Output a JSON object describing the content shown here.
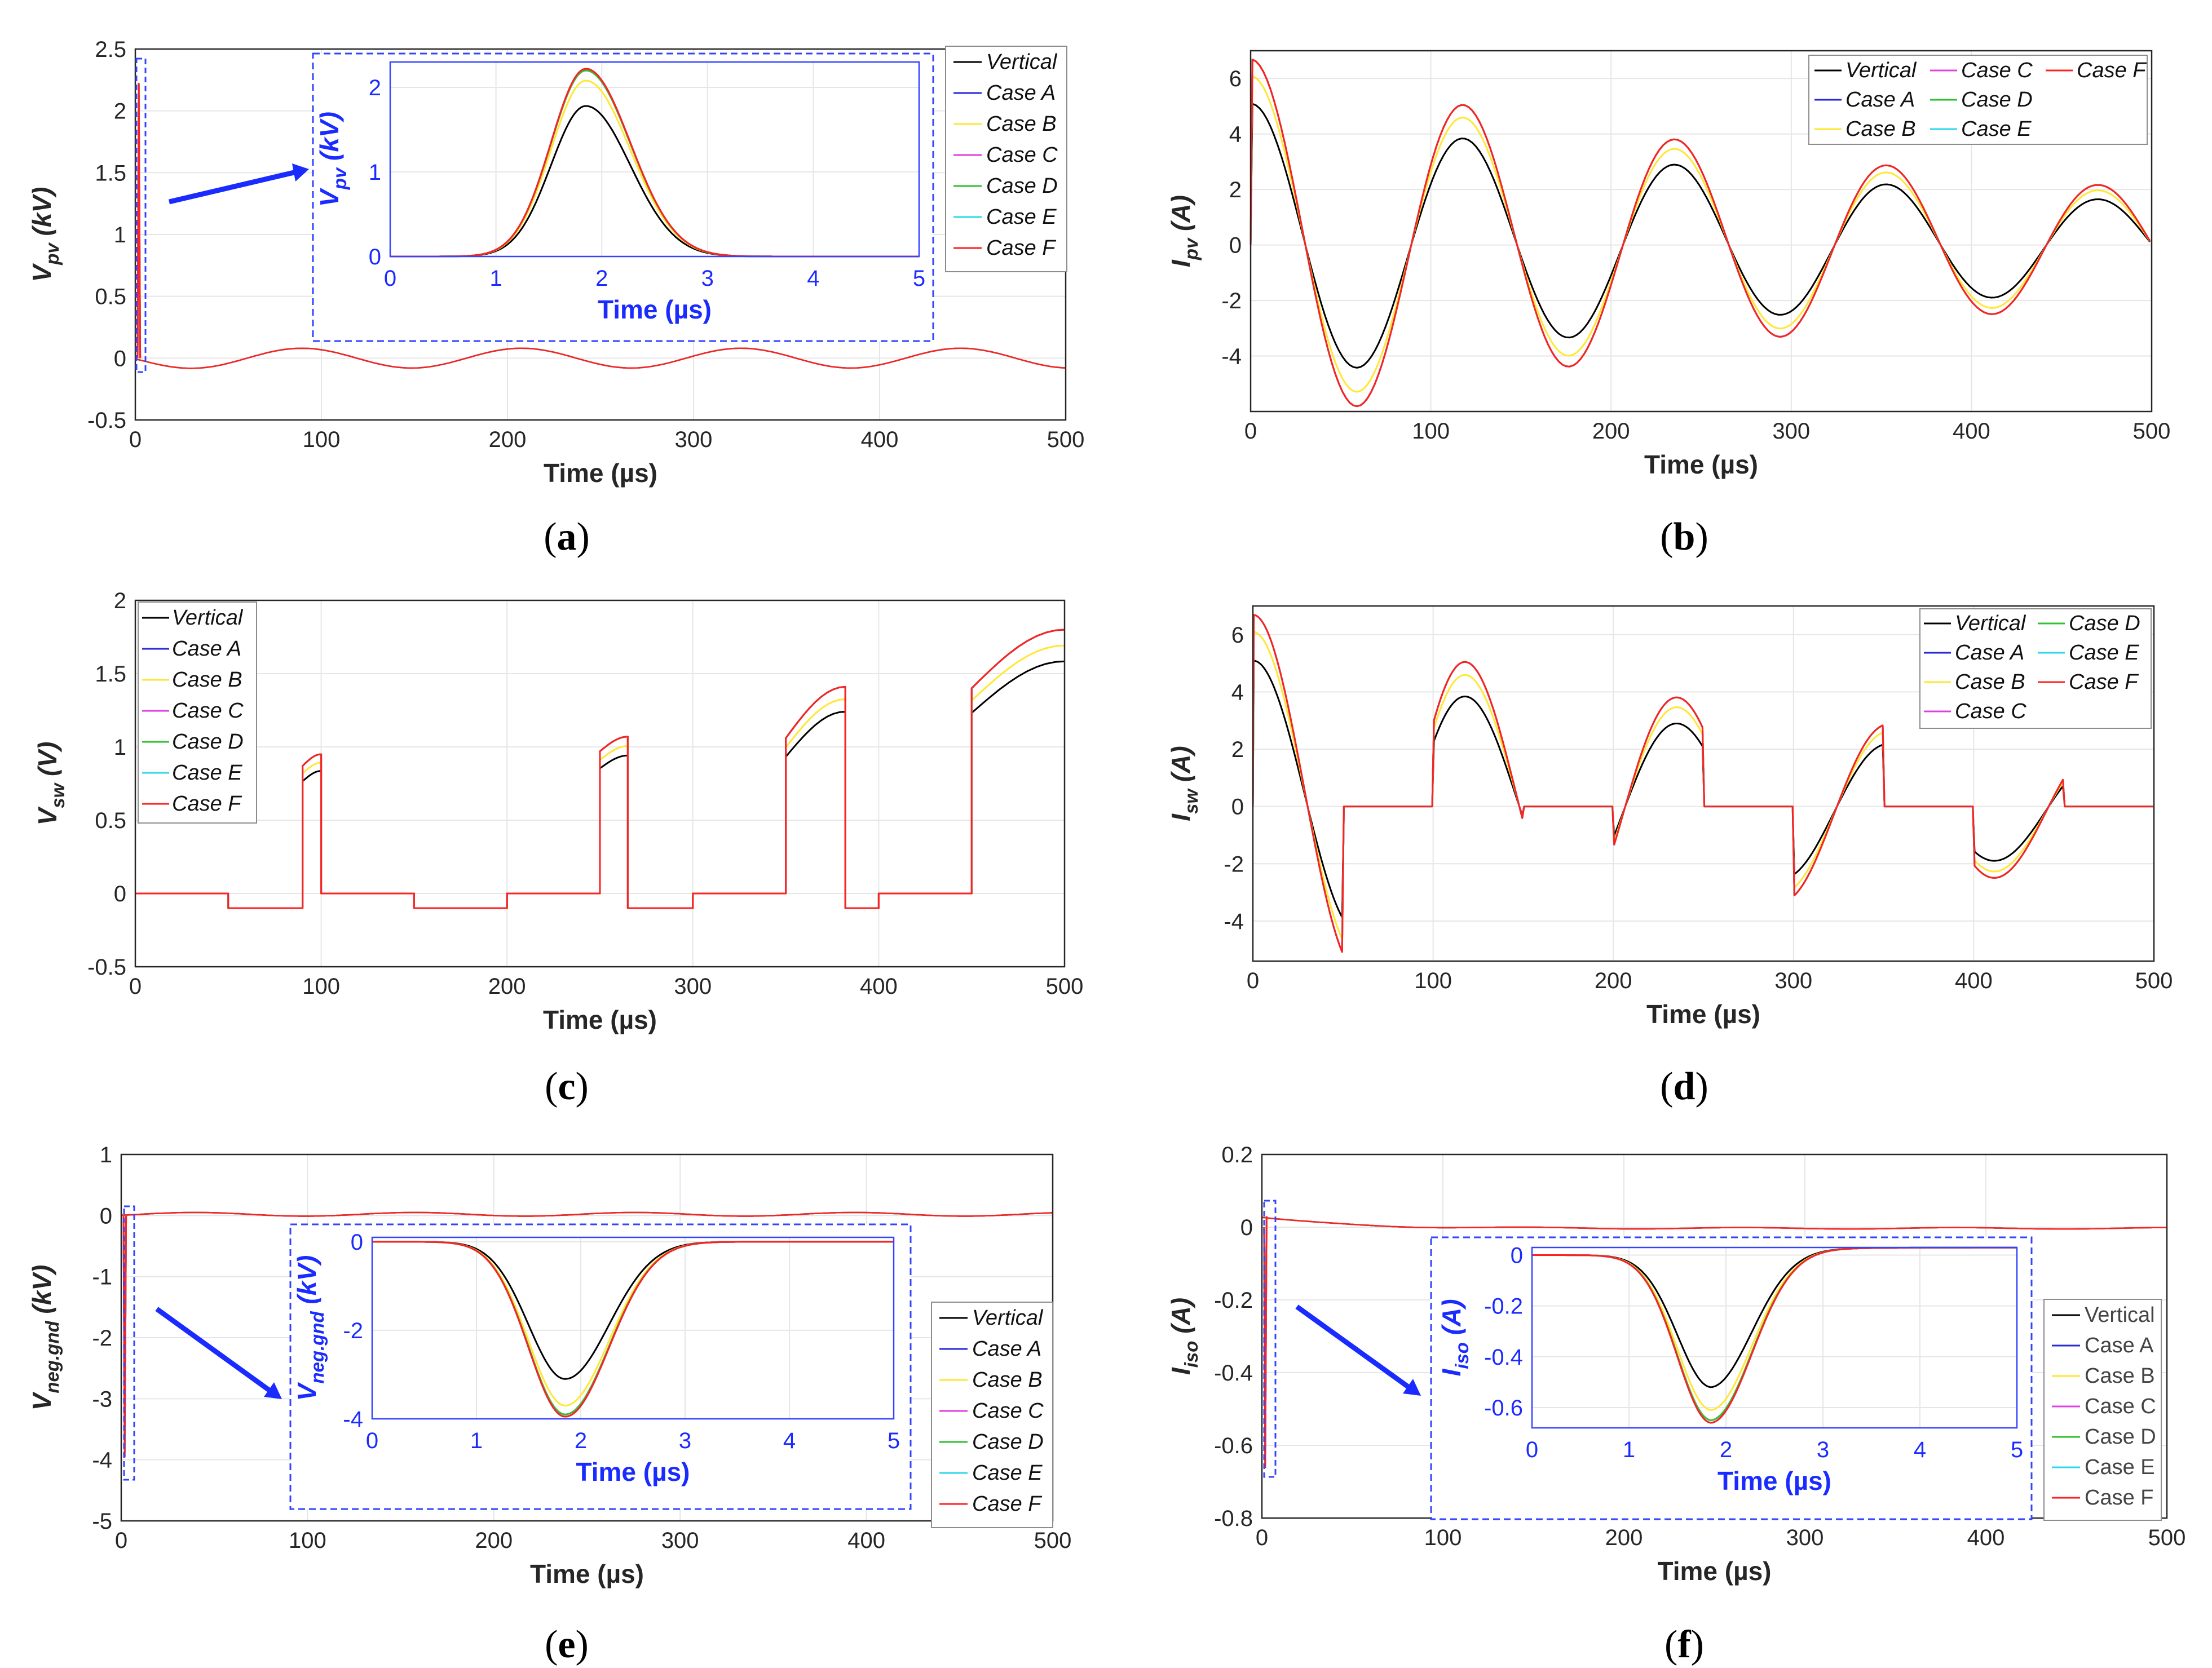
{
  "series_names": [
    "Vertical",
    "Case A",
    "Case B",
    "Case C",
    "Case D",
    "Case E",
    "Case F"
  ],
  "series_colors": [
    "#000000",
    "#2a2ad8",
    "#ffe733",
    "#e040e0",
    "#30c030",
    "#30d8e8",
    "#ff2020"
  ],
  "captions": [
    {
      "open": "(",
      "letter": "a",
      "close": ")"
    },
    {
      "open": "(",
      "letter": "b",
      "close": ")"
    },
    {
      "open": "(",
      "letter": "c",
      "close": ")"
    },
    {
      "open": "(",
      "letter": "d",
      "close": ")"
    },
    {
      "open": "(",
      "letter": "e",
      "close": ")"
    },
    {
      "open": "(",
      "letter": "f",
      "close": ")"
    }
  ],
  "chart_data": [
    {
      "id": "a",
      "type": "line",
      "title": "",
      "xlabel": "Time (µs)",
      "ylabel_main": "V",
      "ylabel_sub": "pv",
      "ylabel_unit": " (kV)",
      "xlim": [
        0,
        500
      ],
      "ylim": [
        -0.5,
        2.5
      ],
      "xticks": [
        "0",
        "100",
        "200",
        "300",
        "400",
        "500"
      ],
      "yticks": [
        "-0.5",
        "0",
        "0.5",
        "1",
        "1.5",
        "2",
        "2.5"
      ],
      "legend": "top-right, outside",
      "series": [
        {
          "name": "Vertical",
          "scale": 1.0
        },
        {
          "name": "Case A",
          "scale": 1.03
        },
        {
          "name": "Case B",
          "scale": 1.0
        },
        {
          "name": "Case C",
          "scale": 1.03
        },
        {
          "name": "Case D",
          "scale": 1.03
        },
        {
          "name": "Case E",
          "scale": 1.03
        },
        {
          "name": "Case F",
          "scale": 1.03
        }
      ],
      "tail_oscillation": {
        "amplitude": 0.08,
        "period_us": 118
      },
      "inset": {
        "xlabel": "Time (µs)",
        "ylabel_main": "V",
        "ylabel_sub": "pv",
        "ylabel_unit": " (kV)",
        "xlim": [
          0,
          5
        ],
        "ylim": [
          0,
          2.3
        ],
        "xticks": [
          "0",
          "1",
          "2",
          "3",
          "4",
          "5"
        ],
        "yticks": [
          "0",
          "1",
          "2"
        ],
        "pulse_center_us": 1.85,
        "peaks": {
          "Vertical": 1.78,
          "Case A": 2.22,
          "Case B": 2.08,
          "Case C": 2.22,
          "Case D": 2.2,
          "Case E": 2.22,
          "Case F": 2.22
        }
      }
    },
    {
      "id": "b",
      "type": "line",
      "xlabel": "Time (µs)",
      "ylabel_main": "I",
      "ylabel_sub": "pv",
      "ylabel_unit": " (A)",
      "xlim": [
        0,
        500
      ],
      "ylim": [
        -6,
        7
      ],
      "xticks": [
        "0",
        "100",
        "200",
        "300",
        "400",
        "500"
      ],
      "yticks": [
        "-4",
        "-2",
        "0",
        "2",
        "4",
        "6"
      ],
      "legend": "top-right, 3 columns",
      "oscillation": {
        "period_us": 117.5,
        "decay_per_us": 0.0024
      },
      "amplitudes": {
        "Vertical": 5.1,
        "Case A": 6.7,
        "Case B": 6.1,
        "Case C": 6.7,
        "Case D": 6.7,
        "Case E": 6.7,
        "Case F": 6.7
      }
    },
    {
      "id": "c",
      "type": "line",
      "xlabel": "Time (µs)",
      "ylabel_main": "V",
      "ylabel_sub": "sw",
      "ylabel_unit": " (V)",
      "xlim": [
        0,
        500
      ],
      "ylim": [
        -0.5,
        2
      ],
      "xticks": [
        "0",
        "100",
        "200",
        "300",
        "400",
        "500"
      ],
      "yticks": [
        "-0.5",
        "0",
        "0.5",
        "1",
        "1.5",
        "2"
      ],
      "legend": "top-left",
      "ratios": {
        "Vertical": 0.88,
        "Case B": 0.94
      },
      "segments": [
        {
          "x0": 0,
          "x1": 50,
          "y0": 0,
          "y1": 0
        },
        {
          "x0": 50,
          "x1": 90,
          "y0": -0.1,
          "y1": -0.1
        },
        {
          "x0": 90,
          "x1": 100,
          "y0": 0.87,
          "y1": 0.95
        },
        {
          "x0": 100,
          "x1": 150,
          "y0": 0,
          "y1": 0
        },
        {
          "x0": 150,
          "x1": 200,
          "y0": -0.1,
          "y1": -0.1
        },
        {
          "x0": 200,
          "x1": 250,
          "y0": 0,
          "y1": 0
        },
        {
          "x0": 250,
          "x1": 265,
          "y0": 0.97,
          "y1": 1.07
        },
        {
          "x0": 265,
          "x1": 300,
          "y0": -0.1,
          "y1": -0.1
        },
        {
          "x0": 300,
          "x1": 350,
          "y0": 0,
          "y1": 0
        },
        {
          "x0": 350,
          "x1": 382,
          "y0": 1.06,
          "y1": 1.41
        },
        {
          "x0": 382,
          "x1": 400,
          "y0": -0.1,
          "y1": -0.1
        },
        {
          "x0": 400,
          "x1": 450,
          "y0": 0,
          "y1": 0
        },
        {
          "x0": 450,
          "x1": 500,
          "y0": 1.4,
          "y1": 1.8
        }
      ]
    },
    {
      "id": "d",
      "type": "line",
      "xlabel": "Time (µs)",
      "ylabel_main": "I",
      "ylabel_sub": "sw",
      "ylabel_unit": " (A)",
      "xlim": [
        0,
        500
      ],
      "ylim": [
        -5.4,
        7
      ],
      "xticks": [
        "0",
        "100",
        "200",
        "300",
        "400",
        "500"
      ],
      "yticks": [
        "-4",
        "-2",
        "0",
        "2",
        "4",
        "6"
      ],
      "legend": "top-right, 2 columns",
      "on_windows_us": [
        [
          0,
          50
        ],
        [
          100,
          150
        ],
        [
          200,
          250
        ],
        [
          300,
          350
        ],
        [
          400,
          450
        ]
      ],
      "oscillation": {
        "period_us": 117.5,
        "decay_per_us": 0.0024
      },
      "amplitudes": {
        "Vertical": 5.1,
        "Case A": 6.7,
        "Case B": 6.1,
        "Case C": 6.7,
        "Case D": 6.7,
        "Case E": 6.7,
        "Case F": 6.7
      }
    },
    {
      "id": "e",
      "type": "line",
      "xlabel": "Time (µs)",
      "ylabel_main": "V",
      "ylabel_sub": "neg.gnd",
      "ylabel_unit": " (kV)",
      "xlim": [
        0,
        500
      ],
      "ylim": [
        -5,
        1
      ],
      "xticks": [
        "0",
        "100",
        "200",
        "300",
        "400",
        "500"
      ],
      "yticks": [
        "-5",
        "-4",
        "-3",
        "-2",
        "-1",
        "0",
        "1"
      ],
      "legend": "bottom-right",
      "tail_oscillation": {
        "amplitude": 0.03,
        "period_us": 118,
        "offset": 0.02
      },
      "inset": {
        "xlabel": "Time (µs)",
        "ylabel_main": "V",
        "ylabel_sub": "neg.gnd",
        "ylabel_unit": " (kV)",
        "xlim": [
          0,
          5
        ],
        "ylim": [
          -4,
          0.1
        ],
        "xticks": [
          "0",
          "1",
          "2",
          "3",
          "4",
          "5"
        ],
        "yticks": [
          "-4",
          "-2",
          "0"
        ],
        "pulse_center_us": 1.85,
        "peaks": {
          "Vertical": -3.1,
          "Case A": -3.95,
          "Case B": -3.7,
          "Case C": -3.95,
          "Case D": -3.9,
          "Case E": -3.95,
          "Case F": -3.95
        }
      }
    },
    {
      "id": "f",
      "type": "line",
      "xlabel": "Time (µs)",
      "ylabel_main": "I",
      "ylabel_sub": "iso",
      "ylabel_unit": " (A)",
      "xlim": [
        0,
        500
      ],
      "ylim": [
        -0.8,
        0.2
      ],
      "xticks": [
        "0",
        "100",
        "200",
        "300",
        "400",
        "500"
      ],
      "yticks": [
        "-0.8",
        "-0.6",
        "-0.4",
        "-0.2",
        "0",
        "0.2"
      ],
      "legend": "bottom-right",
      "inset": {
        "xlabel": "Time (µs)",
        "ylabel_main": "I",
        "ylabel_sub": "iso",
        "ylabel_unit": " (A)",
        "xlim": [
          0,
          5
        ],
        "ylim": [
          -0.68,
          0.03
        ],
        "xticks": [
          "0",
          "1",
          "2",
          "3",
          "4",
          "5"
        ],
        "yticks": [
          "-0.6",
          "-0.4",
          "-0.2",
          "0"
        ],
        "pulse_center_us": 1.85,
        "tail_level": 0.03,
        "peaks": {
          "Vertical": -0.52,
          "Case A": -0.66,
          "Case B": -0.61,
          "Case C": -0.66,
          "Case D": -0.65,
          "Case E": -0.66,
          "Case F": -0.66
        }
      }
    }
  ]
}
